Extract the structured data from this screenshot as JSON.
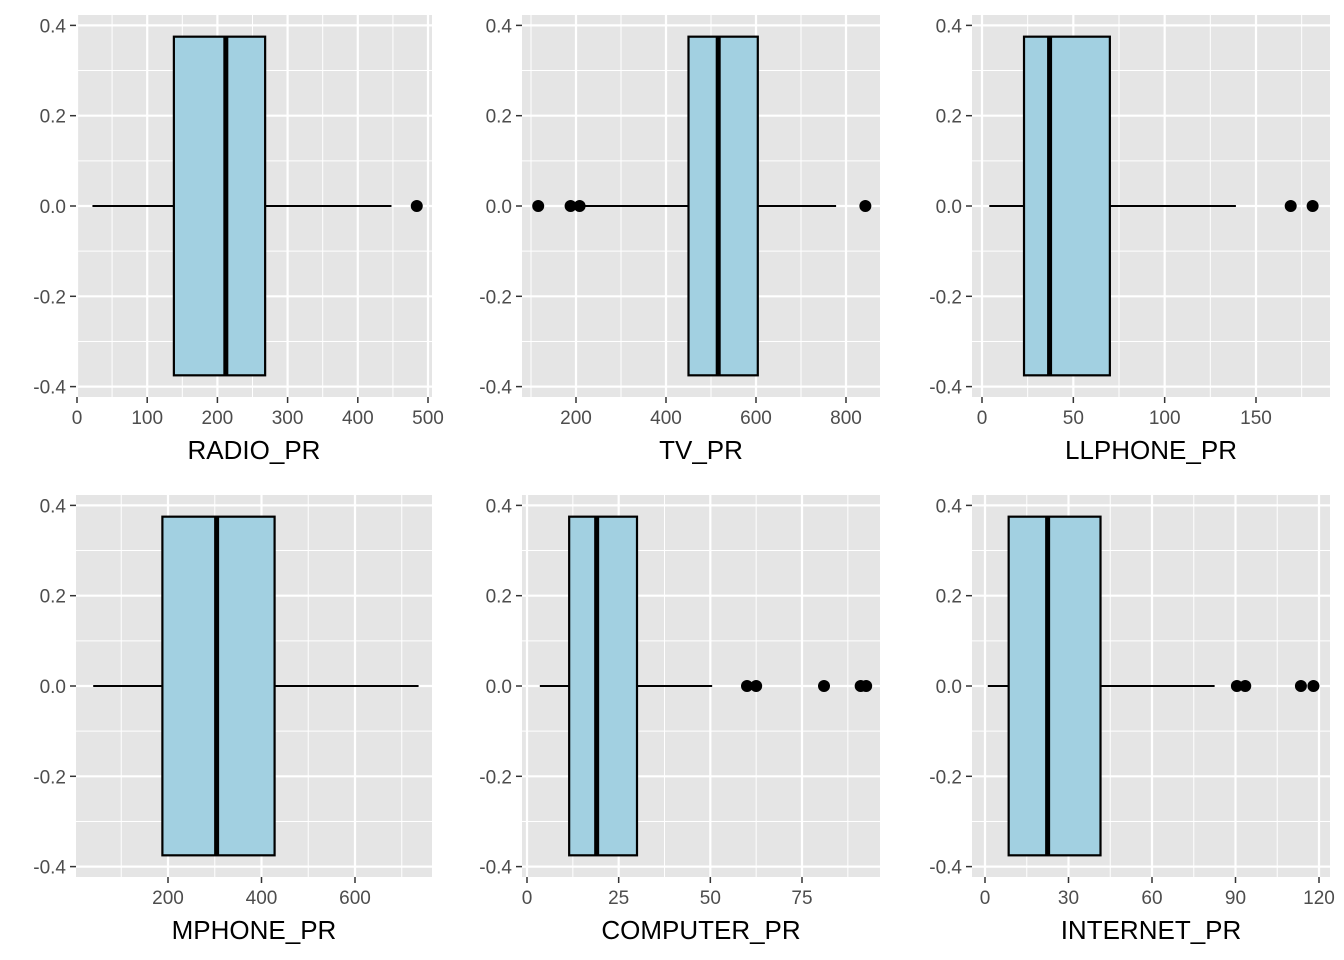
{
  "colors": {
    "panel_background": "#e5e5e5",
    "grid_line": "#ffffff",
    "box_fill": "#a2d0e1",
    "box_outline": "#000000",
    "outlier": "#000000",
    "tick_label": "#4d4d4d"
  },
  "chart_data": [
    {
      "type": "boxplot",
      "orientation": "horizontal",
      "xlabel": "RADIO_PR",
      "ylabel": "",
      "xlim": [
        0,
        500
      ],
      "ylim": [
        -0.4,
        0.4
      ],
      "x_ticks": [
        0,
        100,
        200,
        300,
        400,
        500
      ],
      "x_tick_labels": [
        "0",
        "100",
        "200",
        "300",
        "400",
        "500"
      ],
      "y_ticks": [
        -0.4,
        -0.2,
        0.0,
        0.2,
        0.4
      ],
      "y_tick_labels": [
        "-0.4",
        "-0.2",
        "0.0",
        "0.2",
        "0.4"
      ],
      "box": {
        "whisker_low": 22,
        "q1": 138,
        "median": 212,
        "q3": 268,
        "whisker_high": 448,
        "ymin": -0.375,
        "ymax": 0.375
      },
      "outliers": [
        484
      ],
      "grid": true
    },
    {
      "type": "boxplot",
      "orientation": "horizontal",
      "xlabel": "TV_PR",
      "ylabel": "",
      "xlim": [
        200,
        800
      ],
      "ylim": [
        -0.4,
        0.4
      ],
      "x_ticks": [
        200,
        400,
        600,
        800
      ],
      "x_tick_labels": [
        "200",
        "400",
        "600",
        "800"
      ],
      "y_ticks": [
        -0.4,
        -0.2,
        0.0,
        0.2,
        0.4
      ],
      "y_tick_labels": [
        "-0.4",
        "-0.2",
        "0.0",
        "0.2",
        "0.4"
      ],
      "box": {
        "whisker_low": 210,
        "q1": 450,
        "median": 516,
        "q3": 604,
        "whisker_high": 778,
        "ymin": -0.375,
        "ymax": 0.375
      },
      "outliers": [
        116,
        188,
        208,
        843
      ],
      "grid": true
    },
    {
      "type": "boxplot",
      "orientation": "horizontal",
      "xlabel": "LLPHONE_PR",
      "ylabel": "",
      "xlim": [
        0,
        150
      ],
      "ylim": [
        -0.4,
        0.4
      ],
      "x_ticks": [
        0,
        50,
        100,
        150
      ],
      "x_tick_labels": [
        "0",
        "50",
        "100",
        "150"
      ],
      "y_ticks": [
        -0.4,
        -0.2,
        0.0,
        0.2,
        0.4
      ],
      "y_tick_labels": [
        "-0.4",
        "-0.2",
        "0.0",
        "0.2",
        "0.4"
      ],
      "box": {
        "whisker_low": 4,
        "q1": 23,
        "median": 37,
        "q3": 70,
        "whisker_high": 139,
        "ymin": -0.375,
        "ymax": 0.375
      },
      "outliers": [
        169,
        181
      ],
      "grid": true
    },
    {
      "type": "boxplot",
      "orientation": "horizontal",
      "xlabel": "MPHONE_PR",
      "ylabel": "",
      "xlim": [
        200,
        600
      ],
      "ylim": [
        -0.4,
        0.4
      ],
      "x_ticks": [
        200,
        400,
        600
      ],
      "x_tick_labels": [
        "200",
        "400",
        "600"
      ],
      "y_ticks": [
        -0.4,
        -0.2,
        0.0,
        0.2,
        0.4
      ],
      "y_tick_labels": [
        "-0.4",
        "-0.2",
        "0.0",
        "0.2",
        "0.4"
      ],
      "box": {
        "whisker_low": 40,
        "q1": 188,
        "median": 304,
        "q3": 428,
        "whisker_high": 736,
        "ymin": -0.375,
        "ymax": 0.375
      },
      "outliers": [],
      "grid": true
    },
    {
      "type": "boxplot",
      "orientation": "horizontal",
      "xlabel": "COMPUTER_PR",
      "ylabel": "",
      "xlim": [
        0,
        75
      ],
      "ylim": [
        -0.4,
        0.4
      ],
      "x_ticks": [
        0,
        25,
        50,
        75
      ],
      "x_tick_labels": [
        "0",
        "25",
        "50",
        "75"
      ],
      "y_ticks": [
        -0.4,
        -0.2,
        0.0,
        0.2,
        0.4
      ],
      "y_tick_labels": [
        "-0.4",
        "-0.2",
        "0.0",
        "0.2",
        "0.4"
      ],
      "box": {
        "whisker_low": 3.5,
        "q1": 11.5,
        "median": 19,
        "q3": 30,
        "whisker_high": 50.5,
        "ymin": -0.375,
        "ymax": 0.375
      },
      "outliers": [
        60,
        62.5,
        81,
        91,
        92.5
      ],
      "grid": true
    },
    {
      "type": "boxplot",
      "orientation": "horizontal",
      "xlabel": "INTERNET_PR",
      "ylabel": "",
      "xlim": [
        0,
        120
      ],
      "ylim": [
        -0.4,
        0.4
      ],
      "x_ticks": [
        0,
        30,
        60,
        90,
        120
      ],
      "x_tick_labels": [
        "0",
        "30",
        "60",
        "90",
        "120"
      ],
      "y_ticks": [
        -0.4,
        -0.2,
        0.0,
        0.2,
        0.4
      ],
      "y_tick_labels": [
        "-0.4",
        "-0.2",
        "0.0",
        "0.2",
        "0.4"
      ],
      "box": {
        "whisker_low": 1,
        "q1": 8.5,
        "median": 22.5,
        "q3": 41.5,
        "whisker_high": 82.5,
        "ymin": -0.375,
        "ymax": 0.375
      },
      "outliers": [
        90.5,
        93.5,
        113.5,
        118
      ],
      "grid": true
    }
  ]
}
